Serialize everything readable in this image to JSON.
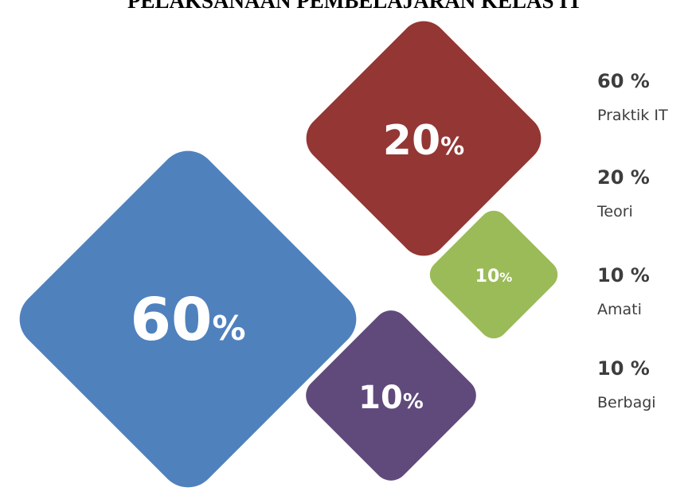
{
  "title": "PELAKSANAAN PEMBELAJARAN KELAS IT",
  "chart_data": {
    "type": "diamond-infographic",
    "title": "PELAKSANAAN PEMBELAJARAN KELAS IT",
    "items": [
      {
        "value": 60,
        "number_text": "60",
        "unit_text": "%",
        "legend_value": "60 %",
        "legend_label": "Praktik IT",
        "color": "#4F81BD"
      },
      {
        "value": 20,
        "number_text": "20",
        "unit_text": "%",
        "legend_value": "20 %",
        "legend_label": "Teori",
        "color": "#943634"
      },
      {
        "value": 10,
        "number_text": "10",
        "unit_text": "%",
        "legend_value": "10 %",
        "legend_label": "Amati",
        "color": "#9BBB59"
      },
      {
        "value": 10,
        "number_text": "10",
        "unit_text": "%",
        "legend_value": "10 %",
        "legend_label": "Berbagi",
        "color": "#604A7B"
      }
    ]
  }
}
